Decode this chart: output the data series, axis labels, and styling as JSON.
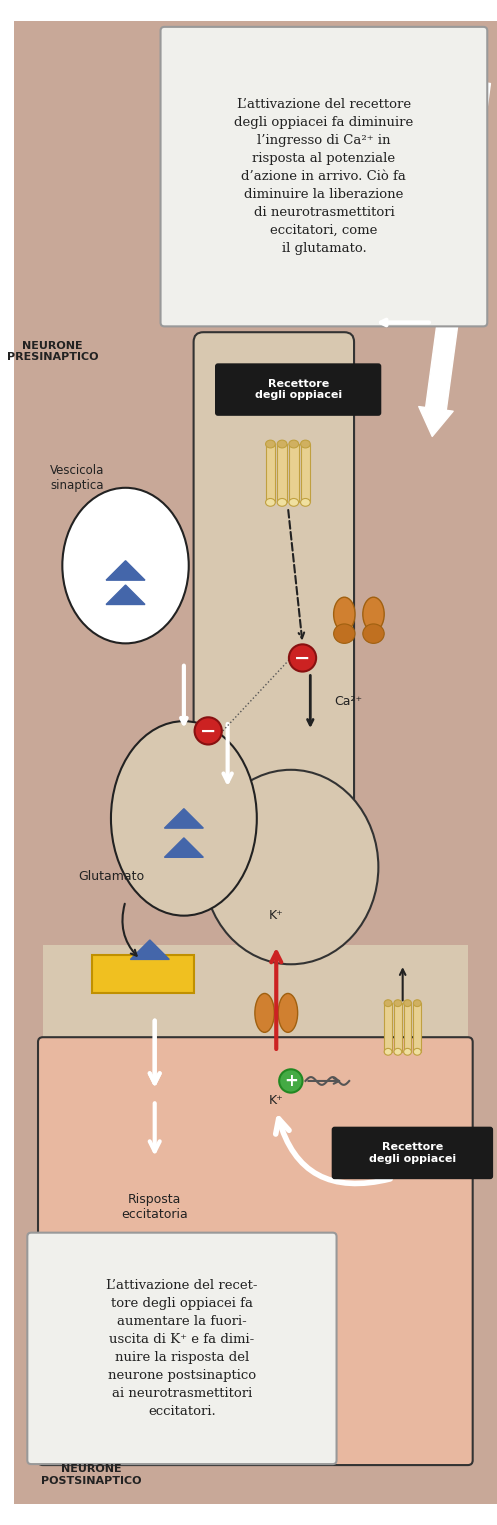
{
  "bg_outer": "#c8a898",
  "bg_inner_pre": "#e8b8a0",
  "bg_inner_post": "#e8b8a0",
  "bg_axon": "#d8c8b0",
  "bg_vesicle": "#f0f0ee",
  "bg_postsynaptic": "#d8c8b0",
  "text_color": "#222222",
  "dark_box_bg": "#1a1a1a",
  "dark_box_text": "#ffffff",
  "light_box_bg": "#f0f0ec",
  "light_box_border": "#999999",
  "blue_triangle": "#4466aa",
  "yellow_receptor": "#f0c020",
  "orange_receptor": "#d08020",
  "red_circle": "#cc2222",
  "green_circle": "#44aa44",
  "red_arrow": "#cc2222",
  "white_arrow": "#ffffff",
  "ca_arrow_color": "#ffffff",
  "title_pre": "NEURONE\nPRESINAPTICO",
  "title_post": "NEURONE\nPOSTSINAPTICO",
  "label_vescicola": "Vescicola\nsinaptica",
  "label_glutamato": "Glutamato",
  "label_risposta": "Risposta\neccitatoria",
  "label_recettore1": "Recettore\ndegli oppiacei",
  "label_recettore2": "Recettore\ndegli oppiacei",
  "label_ca_pre": "Ca²⁺",
  "label_k_top": "K⁺",
  "label_k_bot": "K⁺",
  "text_box1": "L’attivazione del recettore\ndegli oppiacei fa diminuire\nl’ingresso di Ca²⁺ in\nrisposta al potenziale\nd’azione in arrivo. Ciò fa\ndiminuire la liberazione\ndi neurotrasmettitori\neccitatori, come\nil glutamato.",
  "text_box2": "L’attivazione del recet-\ntore degli oppiacei fa\naumentare la fuori-\nuscita di K⁺ e fa dimi-\nnuire la risposta del\nneurone postsinaptico\nai neurotrasmettitori\neccitatori."
}
